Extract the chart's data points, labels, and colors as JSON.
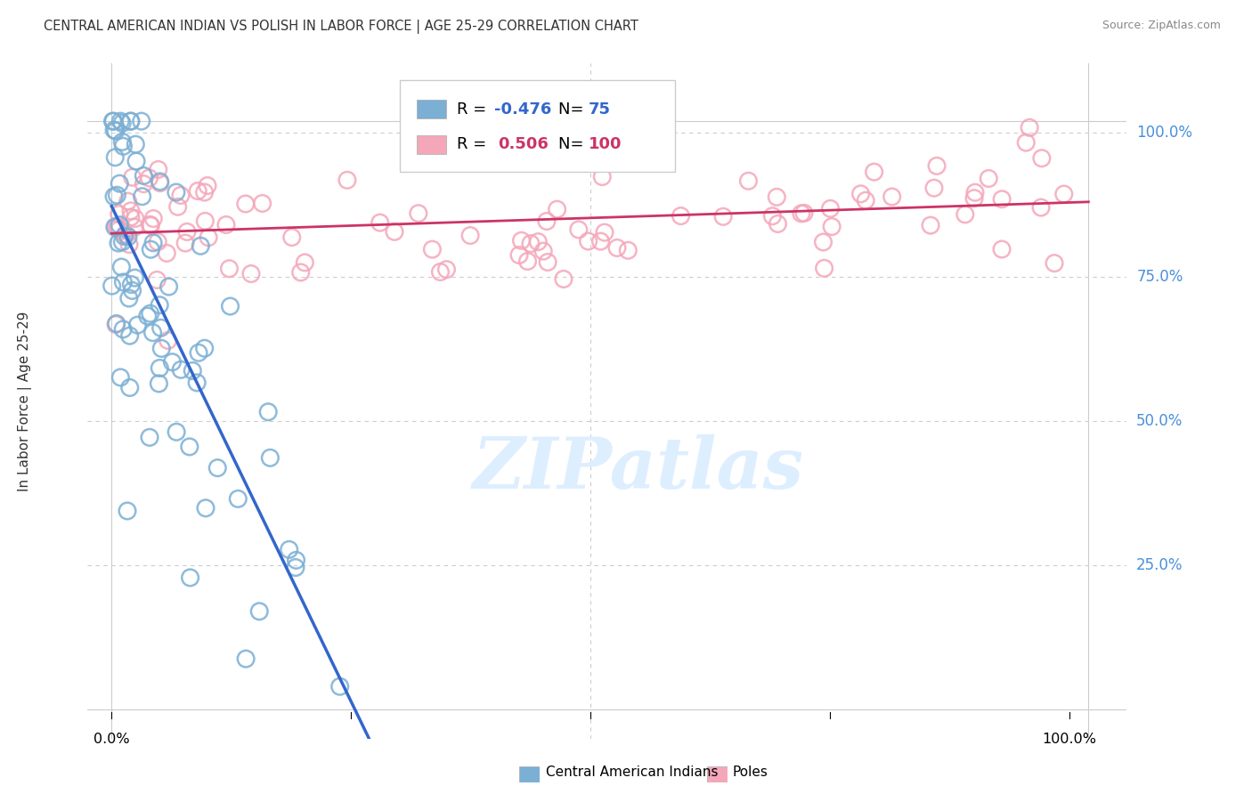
{
  "title": "CENTRAL AMERICAN INDIAN VS POLISH IN LABOR FORCE | AGE 25-29 CORRELATION CHART",
  "source": "Source: ZipAtlas.com",
  "ylabel": "In Labor Force | Age 25-29",
  "ytick_labels": [
    "100.0%",
    "75.0%",
    "50.0%",
    "25.0%"
  ],
  "ytick_values": [
    1.0,
    0.75,
    0.5,
    0.25
  ],
  "blue_color": "#7bafd4",
  "pink_color": "#f4a7b9",
  "blue_edge_color": "#5b9ac4",
  "pink_edge_color": "#e88fa5",
  "blue_line_color": "#3366cc",
  "pink_line_color": "#cc3366",
  "dashed_line_color": "#aac4e0",
  "background_color": "#ffffff",
  "grid_color": "#cccccc",
  "title_color": "#333333",
  "source_color": "#888888",
  "right_label_color": "#4a90d9",
  "watermark_color": "#ddeeff",
  "N_blue": 75,
  "N_pink": 100,
  "R_blue": -0.476,
  "R_pink": 0.506,
  "seed": 42
}
